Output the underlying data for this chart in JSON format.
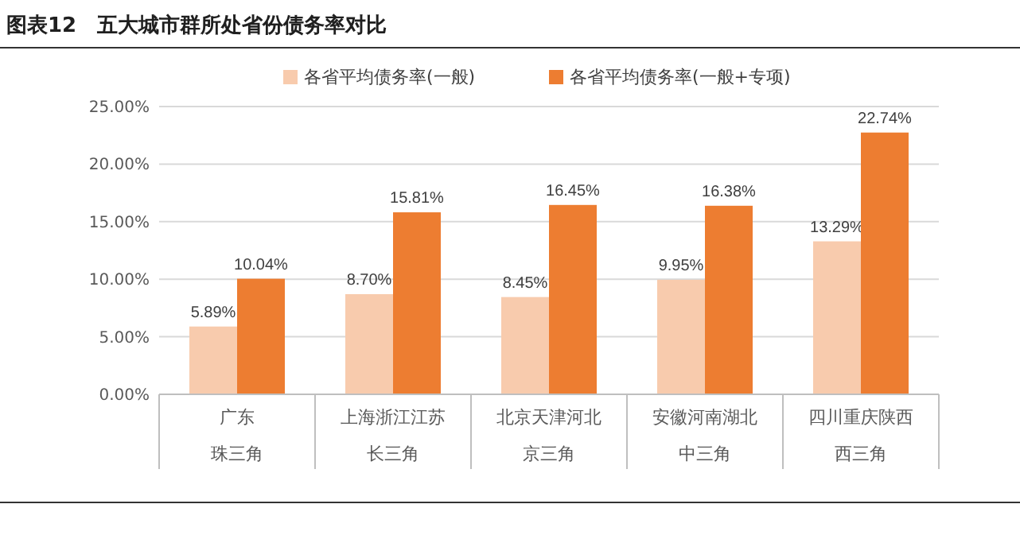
{
  "chart_data": {
    "type": "bar",
    "title": "图表12　五大城市群所处省份债务率对比",
    "categories": [
      "广东珠三角",
      "上海浙江江苏长三角",
      "北京天津河北京三角",
      "安徽河南湖北中三角",
      "四川重庆陕西西三角"
    ],
    "series": [
      {
        "name": "各省平均债务率(一般)",
        "color": "#f8cbad",
        "values": [
          5.89,
          8.7,
          8.45,
          9.95,
          13.29
        ],
        "value_labels": [
          "5.89%",
          "8.70%",
          "8.45%",
          "9.95%",
          "13.29%"
        ]
      },
      {
        "name": "各省平均债务率(一般+专项)",
        "color": "#ed7d31",
        "values": [
          10.04,
          15.81,
          16.45,
          16.38,
          22.74
        ],
        "value_labels": [
          "10.04%",
          "15.81%",
          "16.45%",
          "16.38%",
          "22.74%"
        ]
      }
    ],
    "ylim": [
      0,
      25
    ],
    "yticks": [
      {
        "value": 0,
        "label": "0.00%"
      },
      {
        "value": 5,
        "label": "5.00%"
      },
      {
        "value": 10,
        "label": "10.00%"
      },
      {
        "value": 15,
        "label": "15.00%"
      },
      {
        "value": 20,
        "label": "20.00%"
      },
      {
        "value": 25,
        "label": "25.00%"
      }
    ],
    "grid": "y",
    "legend": "top"
  }
}
